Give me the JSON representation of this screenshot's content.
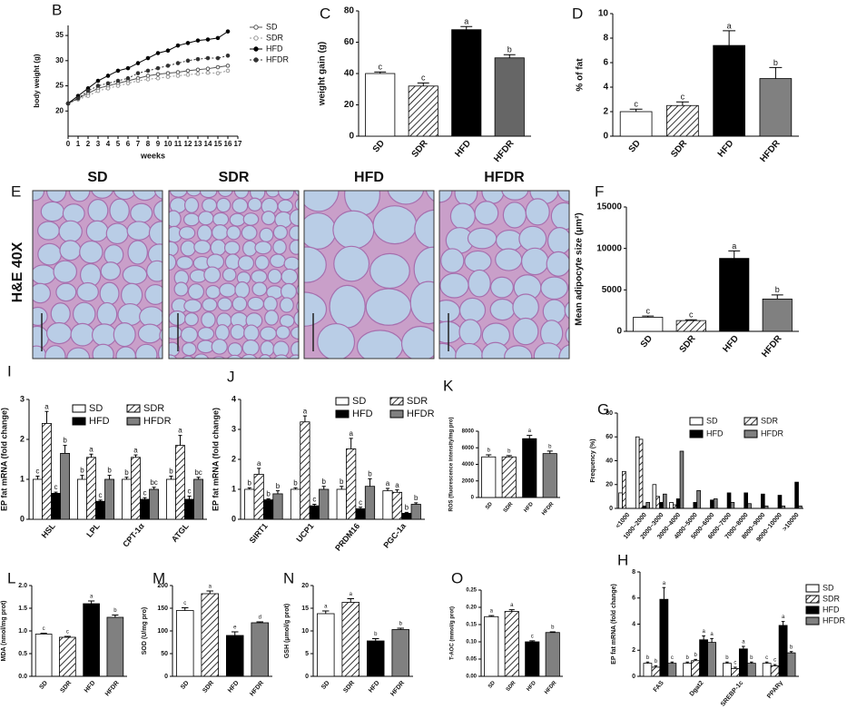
{
  "chart_data": [
    {
      "type": "line",
      "panel_label": "B",
      "x_label": "weeks",
      "y_label": "body weight (g)",
      "x": [
        0,
        1,
        2,
        3,
        4,
        5,
        6,
        7,
        8,
        9,
        10,
        11,
        12,
        13,
        14,
        15,
        16
      ],
      "xlim": [
        0,
        17
      ],
      "xticks": [
        0,
        1,
        2,
        3,
        4,
        5,
        6,
        7,
        8,
        9,
        10,
        11,
        12,
        13,
        14,
        15,
        16,
        17
      ],
      "ylim": [
        15,
        37
      ],
      "yticks": [
        20,
        25,
        30,
        35
      ],
      "legend": "right",
      "series": [
        {
          "name": "SD",
          "color": "#555555",
          "values": [
            21.5,
            22.5,
            23.5,
            24.5,
            25,
            25.5,
            26,
            26.5,
            27,
            27.3,
            27.5,
            27.7,
            28,
            28.2,
            28.4,
            28.7,
            29
          ]
        },
        {
          "name": "SDR",
          "color": "#999999",
          "values": [
            21.5,
            22.3,
            23,
            24,
            24.5,
            25,
            25.5,
            26,
            26.3,
            26.5,
            26.8,
            27,
            27.2,
            27.4,
            27.6,
            27.5,
            28
          ]
        },
        {
          "name": "HFD",
          "color": "#000000",
          "values": [
            21.5,
            23,
            24.5,
            26,
            27,
            28,
            28.5,
            29.5,
            30.5,
            31.5,
            32,
            33,
            33.5,
            34,
            34.2,
            34.5,
            35.8
          ]
        },
        {
          "name": "HFDR",
          "color": "#333333",
          "values": [
            21.5,
            22.5,
            24,
            25,
            25.5,
            26,
            26.5,
            27.5,
            28,
            28.5,
            29,
            29.5,
            30,
            30.3,
            30.5,
            30.5,
            31
          ]
        }
      ]
    },
    {
      "type": "bar",
      "panel_label": "C",
      "y_label": "weight gain (g)",
      "categories": [
        "SD",
        "SDR",
        "HFD",
        "HFDR"
      ],
      "values": [
        40,
        32,
        68,
        50
      ],
      "errors": [
        1,
        2,
        2,
        2
      ],
      "letters": [
        "c",
        "c",
        "a",
        "b"
      ],
      "colors": [
        "#ffffff",
        "#ffffff",
        "#000000",
        "#666666"
      ],
      "hatched": [
        false,
        true,
        false,
        false
      ],
      "ylim": [
        0,
        80
      ],
      "yticks": [
        0,
        20,
        40,
        60,
        80
      ]
    },
    {
      "type": "bar",
      "panel_label": "D",
      "y_label": "% of fat",
      "categories": [
        "SD",
        "SDR",
        "HFD",
        "HFDR"
      ],
      "values": [
        2,
        2.5,
        7.4,
        4.7
      ],
      "errors": [
        0.2,
        0.3,
        1.2,
        0.9
      ],
      "letters": [
        "c",
        "c",
        "a",
        "b"
      ],
      "colors": [
        "#ffffff",
        "#ffffff",
        "#000000",
        "#808080"
      ],
      "hatched": [
        false,
        true,
        false,
        false
      ],
      "ylim": [
        0,
        10
      ],
      "yticks": [
        0,
        2,
        4,
        6,
        8,
        10
      ]
    },
    {
      "type": "bar",
      "panel_label": "F",
      "y_label": "Mean adipocyte size (μm²)",
      "categories": [
        "SD",
        "SDR",
        "HFD",
        "HFDR"
      ],
      "values": [
        1700,
        1300,
        8800,
        3900
      ],
      "errors": [
        150,
        100,
        900,
        500
      ],
      "letters": [
        "c",
        "c",
        "a",
        "b"
      ],
      "colors": [
        "#ffffff",
        "#ffffff",
        "#000000",
        "#808080"
      ],
      "hatched": [
        false,
        true,
        false,
        false
      ],
      "ylim": [
        0,
        15000
      ],
      "yticks": [
        0,
        5000,
        10000,
        15000
      ]
    },
    {
      "type": "grouped_bar",
      "panel_label": "I",
      "y_label": "EP fat mRNA (fold change)",
      "categories": [
        "HSL",
        "LPL",
        "CPT-1α",
        "ATGL"
      ],
      "ylim": [
        0,
        3
      ],
      "yticks": [
        0,
        1,
        2,
        3
      ],
      "legend": "top",
      "series": [
        {
          "name": "SD",
          "color": "#ffffff",
          "hatched": false,
          "values": [
            1.0,
            1.0,
            1.0,
            1.0
          ],
          "errors": [
            0.08,
            0.1,
            0.05,
            0.08
          ],
          "letters": [
            "c",
            "b",
            "b",
            "b"
          ]
        },
        {
          "name": "SDR",
          "color": "#ffffff",
          "hatched": true,
          "values": [
            2.4,
            1.55,
            1.55,
            1.85
          ],
          "errors": [
            0.3,
            0.08,
            0.06,
            0.25
          ],
          "letters": [
            "a",
            "a",
            "a",
            "a"
          ]
        },
        {
          "name": "HFD",
          "color": "#000000",
          "hatched": false,
          "values": [
            0.65,
            0.45,
            0.5,
            0.5
          ],
          "errors": [
            0.03,
            0.03,
            0.04,
            0.08
          ],
          "letters": [
            "c",
            "c",
            "c",
            "c"
          ]
        },
        {
          "name": "HFDR",
          "color": "#808080",
          "hatched": false,
          "values": [
            1.65,
            1.0,
            0.75,
            1.0
          ],
          "errors": [
            0.2,
            0.1,
            0.05,
            0.05
          ],
          "letters": [
            "b",
            "b",
            "bc",
            "bc"
          ]
        }
      ]
    },
    {
      "type": "grouped_bar",
      "panel_label": "J",
      "y_label": "EP fat mRNA (fold change)",
      "categories": [
        "SIRT1",
        "UCP1",
        "PRDM16",
        "PGC-1a"
      ],
      "ylim": [
        0,
        4
      ],
      "yticks": [
        0,
        1,
        2,
        3,
        4
      ],
      "legend": "top",
      "series": [
        {
          "name": "SD",
          "color": "#ffffff",
          "hatched": false,
          "values": [
            1.0,
            1.0,
            1.0,
            0.95
          ],
          "errors": [
            0.05,
            0.05,
            0.1,
            0.08
          ],
          "letters": [
            "b",
            "b",
            "b",
            "a"
          ]
        },
        {
          "name": "SDR",
          "color": "#ffffff",
          "hatched": true,
          "values": [
            1.5,
            3.25,
            2.35,
            0.9
          ],
          "errors": [
            0.2,
            0.2,
            0.35,
            0.08
          ],
          "letters": [
            "a",
            "a",
            "a",
            "a"
          ]
        },
        {
          "name": "HFD",
          "color": "#000000",
          "hatched": false,
          "values": [
            0.65,
            0.45,
            0.35,
            0.2
          ],
          "errors": [
            0.03,
            0.05,
            0.05,
            0.03
          ],
          "letters": [
            "b",
            "c",
            "c",
            "b"
          ]
        },
        {
          "name": "HFDR",
          "color": "#808080",
          "hatched": false,
          "values": [
            0.85,
            1.0,
            1.1,
            0.5
          ],
          "errors": [
            0.1,
            0.1,
            0.25,
            0.05
          ],
          "letters": [
            "b",
            "b",
            "b",
            "b"
          ]
        }
      ]
    },
    {
      "type": "bar",
      "panel_label": "K",
      "y_label": "ROS (fluorescence intensity/mg pro)",
      "categories": [
        "SD",
        "SDR",
        "HFD",
        "HFDR"
      ],
      "values": [
        4900,
        4900,
        7100,
        5300
      ],
      "errors": [
        250,
        150,
        400,
        300
      ],
      "letters": [
        "b",
        "b",
        "a",
        "b"
      ],
      "colors": [
        "#ffffff",
        "#ffffff",
        "#000000",
        "#808080"
      ],
      "hatched": [
        false,
        true,
        false,
        false
      ],
      "ylim": [
        0,
        8000
      ],
      "yticks": [
        0,
        2000,
        4000,
        6000,
        8000
      ]
    },
    {
      "type": "grouped_bar",
      "panel_label": "G",
      "y_label": "Frequency (%)",
      "categories": [
        "<1000",
        "1000~2000",
        "2000~3000",
        "3000~4000",
        "4000~5000",
        "5000~6000",
        "6000~7000",
        "7000~8000",
        "8000~9000",
        "9000~10000",
        ">10000"
      ],
      "ylim": [
        0,
        80
      ],
      "yticks": [
        0,
        20,
        40,
        60,
        80
      ],
      "legend": "top",
      "series": [
        {
          "name": "SD",
          "color": "#ffffff",
          "hatched": false,
          "values": [
            13,
            60,
            20,
            5,
            0,
            0,
            0,
            0,
            0,
            0,
            0
          ]
        },
        {
          "name": "SDR",
          "color": "#ffffff",
          "hatched": true,
          "values": [
            31,
            58,
            10,
            3,
            0,
            0,
            0,
            0,
            0,
            0,
            0
          ]
        },
        {
          "name": "HFD",
          "color": "#000000",
          "hatched": false,
          "values": [
            0,
            2,
            5,
            8,
            5,
            7,
            13,
            13,
            12,
            11,
            22
          ]
        },
        {
          "name": "HFDR",
          "color": "#808080",
          "hatched": false,
          "values": [
            0,
            5,
            12,
            48,
            15,
            8,
            5,
            4,
            2,
            2,
            2
          ]
        }
      ]
    },
    {
      "type": "bar",
      "panel_label": "L",
      "y_label": "MDA (nmol/mg prot)",
      "categories": [
        "SD",
        "SDR",
        "HFD",
        "HFDR"
      ],
      "values": [
        0.93,
        0.86,
        1.6,
        1.3
      ],
      "errors": [
        0.02,
        0.02,
        0.06,
        0.05
      ],
      "letters": [
        "c",
        "c",
        "a",
        "b"
      ],
      "colors": [
        "#ffffff",
        "#ffffff",
        "#000000",
        "#808080"
      ],
      "hatched": [
        false,
        true,
        false,
        false
      ],
      "ylim": [
        0,
        2
      ],
      "yticks": [
        {
          "value": 0,
          "label": "0.0"
        },
        0.5,
        {
          "value": 1,
          "label": "1.0"
        },
        1.5,
        {
          "value": 2,
          "label": "2.0"
        }
      ]
    },
    {
      "type": "bar",
      "panel_label": "M",
      "y_label": "SOD (U/mg pro)",
      "categories": [
        "SD",
        "SDR",
        "HFD",
        "HFDR"
      ],
      "values": [
        145,
        182,
        90,
        118
      ],
      "errors": [
        6,
        6,
        8,
        2
      ],
      "letters": [
        "c",
        "a",
        "e",
        "d"
      ],
      "colors": [
        "#ffffff",
        "#ffffff",
        "#000000",
        "#808080"
      ],
      "hatched": [
        false,
        true,
        false,
        false
      ],
      "ylim": [
        0,
        200
      ],
      "yticks": [
        0,
        50,
        100,
        150,
        200
      ]
    },
    {
      "type": "bar",
      "panel_label": "N",
      "y_label": "GSH (μmol/g prot)",
      "categories": [
        "SD",
        "SDR",
        "HFD",
        "HFDR"
      ],
      "values": [
        13.8,
        16.3,
        7.8,
        10.3
      ],
      "errors": [
        0.6,
        0.8,
        0.5,
        0.3
      ],
      "letters": [
        "a",
        "a",
        "b",
        "b"
      ],
      "colors": [
        "#ffffff",
        "#ffffff",
        "#000000",
        "#808080"
      ],
      "hatched": [
        false,
        true,
        false,
        false
      ],
      "ylim": [
        0,
        20
      ],
      "yticks": [
        0,
        5,
        10,
        15,
        20
      ]
    },
    {
      "type": "bar",
      "panel_label": "O",
      "y_label": "T-AOC (mmol/g prot)",
      "categories": [
        "SD",
        "SDR",
        "HFD",
        "HFDR"
      ],
      "values": [
        0.173,
        0.188,
        0.1,
        0.127
      ],
      "errors": [
        0.003,
        0.005,
        0.003,
        0.002
      ],
      "letters": [
        "a",
        "a",
        "c",
        "b"
      ],
      "colors": [
        "#ffffff",
        "#ffffff",
        "#000000",
        "#808080"
      ],
      "hatched": [
        false,
        true,
        false,
        false
      ],
      "ylim": [
        0,
        0.25
      ],
      "yticks": [
        {
          "value": 0,
          "label": "0.00"
        },
        0.05,
        {
          "value": 0.1,
          "label": "0.10"
        },
        0.15,
        {
          "value": 0.2,
          "label": "0.20"
        },
        0.25
      ]
    },
    {
      "type": "grouped_bar",
      "panel_label": "H",
      "y_label": "EP fat mRNA (fold change)",
      "categories": [
        "FAS",
        "Dgat2",
        "SREBP-1c",
        "PPARγ"
      ],
      "ylim": [
        0,
        8
      ],
      "yticks": [
        0,
        2,
        4,
        6,
        8
      ],
      "legend": "right",
      "series": [
        {
          "name": "SD",
          "color": "#ffffff",
          "hatched": false,
          "values": [
            1.0,
            1.0,
            1.0,
            1.0
          ],
          "errors": [
            0.1,
            0.1,
            0.1,
            0.1
          ],
          "letters": [
            "b",
            "b",
            "b",
            "c"
          ]
        },
        {
          "name": "SDR",
          "color": "#ffffff",
          "hatched": true,
          "values": [
            0.7,
            1.2,
            0.6,
            0.8
          ],
          "errors": [
            0.1,
            0.1,
            0.1,
            0.1
          ],
          "letters": [
            "b",
            "b",
            "c",
            "c"
          ]
        },
        {
          "name": "HFD",
          "color": "#000000",
          "hatched": false,
          "values": [
            5.9,
            2.8,
            2.1,
            3.9
          ],
          "errors": [
            0.9,
            0.3,
            0.2,
            0.3
          ],
          "letters": [
            "a",
            "a",
            "a",
            "a"
          ]
        },
        {
          "name": "HFDR",
          "color": "#808080",
          "hatched": false,
          "values": [
            1.0,
            2.6,
            1.0,
            1.8
          ],
          "errors": [
            0.1,
            0.3,
            0.1,
            0.1
          ],
          "letters": [
            "c",
            "a",
            "b",
            "b"
          ]
        }
      ]
    }
  ],
  "histology": {
    "panel_label": "E",
    "side_label": "H&E 40X",
    "images": [
      {
        "label": "SD"
      },
      {
        "label": "SDR"
      },
      {
        "label": "HFD"
      },
      {
        "label": "HFDR"
      }
    ]
  }
}
